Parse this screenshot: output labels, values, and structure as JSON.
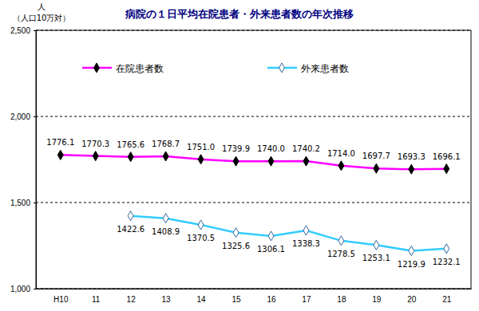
{
  "chart_data": {
    "type": "line",
    "title": "病院の１日平均在院患者・外来患者数の年次推移",
    "ylabel": "人",
    "ylabel_sub": "（人口10万対）",
    "categories": [
      "H10",
      "11",
      "12",
      "13",
      "14",
      "15",
      "16",
      "17",
      "18",
      "19",
      "20",
      "21"
    ],
    "ylim": [
      1000,
      2500
    ],
    "yticks": [
      {
        "value": 1000,
        "label": "1,000"
      },
      {
        "value": 1500,
        "label": "1,500"
      },
      {
        "value": 2000,
        "label": "2,000"
      },
      {
        "value": 2500,
        "label": "2,500"
      }
    ],
    "grid": true,
    "legend": "upper left",
    "data_labels": true,
    "series": [
      {
        "name": "在院患者数",
        "color": "#ff00ff",
        "marker": "diamond",
        "values": [
          1776.1,
          1770.3,
          1765.6,
          1768.7,
          1751.0,
          1739.9,
          1740.0,
          1740.2,
          1714.0,
          1697.7,
          1693.3,
          1696.1
        ],
        "value_labels": [
          "1776.1",
          "1770.3",
          "1765.6",
          "1768.7",
          "1751.0",
          "1739.9",
          "1740.0",
          "1740.2",
          "1714.0",
          "1697.7",
          "1693.3",
          "1696.1"
        ]
      },
      {
        "name": "外来患者数",
        "color": "#33ccff",
        "marker": "open-diamond",
        "values": [
          null,
          null,
          1422.6,
          1408.9,
          1370.5,
          1325.6,
          1306.1,
          1338.3,
          1278.5,
          1253.1,
          1219.9,
          1232.1
        ],
        "value_labels": [
          null,
          null,
          "1422.6",
          "1408.9",
          "1370.5",
          "1325.6",
          "1306.1",
          "1338.3",
          "1278.5",
          "1253.1",
          "1219.9",
          "1232.1"
        ]
      }
    ]
  }
}
